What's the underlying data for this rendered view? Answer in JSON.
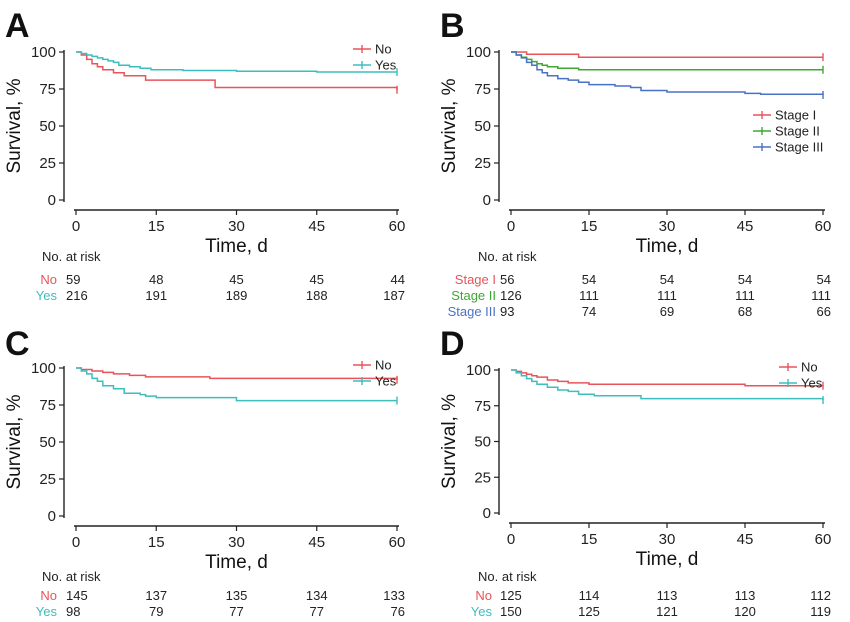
{
  "chart_data": [
    {
      "panel": "A",
      "type": "line",
      "xlabel": "Time, d",
      "ylabel": "Survival, %",
      "xticks": [
        0,
        15,
        30,
        45,
        60
      ],
      "yticks": [
        0,
        25,
        50,
        75,
        100
      ],
      "xlim": [
        0,
        60
      ],
      "ylim": [
        0,
        100
      ],
      "legend_position": "top-right",
      "series": [
        {
          "name": "No",
          "color": "#e8545a",
          "x": [
            0,
            1,
            2,
            3,
            4,
            5,
            7,
            9,
            13,
            26,
            60
          ],
          "y": [
            100,
            98,
            95,
            92,
            90,
            88,
            86,
            84,
            81,
            76,
            74.5
          ]
        },
        {
          "name": "Yes",
          "color": "#3dbdbd",
          "x": [
            0,
            1,
            2,
            3,
            4,
            5,
            6,
            7,
            8,
            10,
            12,
            14,
            20,
            30,
            45,
            60
          ],
          "y": [
            100,
            99,
            98,
            97,
            96,
            95,
            94,
            93,
            91,
            90,
            89,
            88,
            87.5,
            87,
            86.5,
            86.5
          ]
        }
      ],
      "risk_table": {
        "title": "No. at risk",
        "times": [
          0,
          15,
          30,
          45,
          60
        ],
        "rows": [
          {
            "name": "No",
            "color": "#e8545a",
            "values": [
              "59",
              "48",
              "45",
              "45",
              "44"
            ]
          },
          {
            "name": "Yes",
            "color": "#3dbdbd",
            "values": [
              "216",
              "191",
              "189",
              "188",
              "187"
            ]
          }
        ]
      }
    },
    {
      "panel": "B",
      "type": "line",
      "xlabel": "Time, d",
      "ylabel": "Survival, %",
      "xticks": [
        0,
        15,
        30,
        45,
        60
      ],
      "yticks": [
        0,
        25,
        50,
        75,
        100
      ],
      "xlim": [
        0,
        60
      ],
      "ylim": [
        0,
        100
      ],
      "legend_position": "right",
      "series": [
        {
          "name": "Stage I",
          "color": "#e8545a",
          "x": [
            0,
            3,
            13,
            60
          ],
          "y": [
            100,
            98.5,
            96.5,
            96.5
          ]
        },
        {
          "name": "Stage II",
          "color": "#3ea832",
          "x": [
            0,
            1,
            2,
            3,
            4,
            5,
            6,
            7,
            9,
            13,
            60
          ],
          "y": [
            100,
            98,
            96.5,
            95,
            93.5,
            92,
            91,
            90,
            89,
            88,
            88
          ]
        },
        {
          "name": "Stage III",
          "color": "#4a72c4",
          "x": [
            0,
            1,
            2,
            3,
            4,
            5,
            6,
            7,
            9,
            11,
            13,
            15,
            20,
            23,
            25,
            30,
            45,
            48,
            60
          ],
          "y": [
            100,
            98,
            96,
            93,
            91,
            88,
            86,
            84,
            82,
            81,
            79.5,
            78,
            77,
            76,
            74,
            73,
            72,
            71.5,
            71
          ]
        }
      ],
      "risk_table": {
        "title": "No. at risk",
        "times": [
          0,
          15,
          30,
          45,
          60
        ],
        "rows": [
          {
            "name": "Stage I",
            "color": "#e8545a",
            "values": [
              "56",
              "54",
              "54",
              "54",
              "54"
            ]
          },
          {
            "name": "Stage II",
            "color": "#3ea832",
            "values": [
              "126",
              "111",
              "111",
              "111",
              "111"
            ]
          },
          {
            "name": "Stage III",
            "color": "#4a72c4",
            "values": [
              "93",
              "74",
              "69",
              "68",
              "66"
            ]
          }
        ]
      }
    },
    {
      "panel": "C",
      "type": "line",
      "xlabel": "Time, d",
      "ylabel": "Survival, %",
      "xticks": [
        0,
        15,
        30,
        45,
        60
      ],
      "yticks": [
        0,
        25,
        50,
        75,
        100
      ],
      "xlim": [
        0,
        60
      ],
      "ylim": [
        0,
        100
      ],
      "legend_position": "top-right",
      "series": [
        {
          "name": "No",
          "color": "#e8545a",
          "x": [
            0,
            1,
            3,
            5,
            7,
            10,
            13,
            25,
            60
          ],
          "y": [
            100,
            99,
            98,
            97,
            96,
            95,
            94,
            93,
            92
          ]
        },
        {
          "name": "Yes",
          "color": "#3dbdbd",
          "x": [
            0,
            1,
            2,
            3,
            4,
            5,
            7,
            9,
            12,
            13,
            15,
            30,
            60
          ],
          "y": [
            100,
            98,
            96,
            93,
            91,
            88,
            86,
            83,
            82,
            81,
            80,
            78,
            78
          ]
        }
      ],
      "risk_table": {
        "title": "No. at risk",
        "times": [
          0,
          15,
          30,
          45,
          60
        ],
        "rows": [
          {
            "name": "No",
            "color": "#e8545a",
            "values": [
              "145",
              "137",
              "135",
              "134",
              "133"
            ]
          },
          {
            "name": "Yes",
            "color": "#3dbdbd",
            "values": [
              "98",
              "79",
              "77",
              "77",
              "76"
            ]
          }
        ]
      }
    },
    {
      "panel": "D",
      "type": "line",
      "xlabel": "Time, d",
      "ylabel": "Survival, %",
      "xticks": [
        0,
        15,
        30,
        45,
        60
      ],
      "yticks": [
        0,
        25,
        50,
        75,
        100
      ],
      "xlim": [
        0,
        60
      ],
      "ylim": [
        0,
        100
      ],
      "legend_position": "top-right",
      "series": [
        {
          "name": "No",
          "color": "#e8545a",
          "x": [
            0,
            1,
            2,
            3,
            4,
            5,
            7,
            9,
            11,
            15,
            45,
            60
          ],
          "y": [
            100,
            99,
            98,
            97,
            96,
            95,
            93,
            92,
            91,
            90,
            89,
            89
          ]
        },
        {
          "name": "Yes",
          "color": "#3dbdbd",
          "x": [
            0,
            1,
            2,
            3,
            4,
            5,
            7,
            9,
            11,
            13,
            16,
            25,
            60
          ],
          "y": [
            100,
            98,
            96,
            94,
            92,
            90,
            88,
            86,
            85,
            83,
            82,
            80,
            79
          ]
        }
      ],
      "risk_table": {
        "title": "No. at risk",
        "times": [
          0,
          15,
          30,
          45,
          60
        ],
        "rows": [
          {
            "name": "No",
            "color": "#e8545a",
            "values": [
              "125",
              "114",
              "113",
              "113",
              "112"
            ]
          },
          {
            "name": "Yes",
            "color": "#3dbdbd",
            "values": [
              "150",
              "125",
              "121",
              "120",
              "119"
            ]
          }
        ]
      }
    }
  ]
}
